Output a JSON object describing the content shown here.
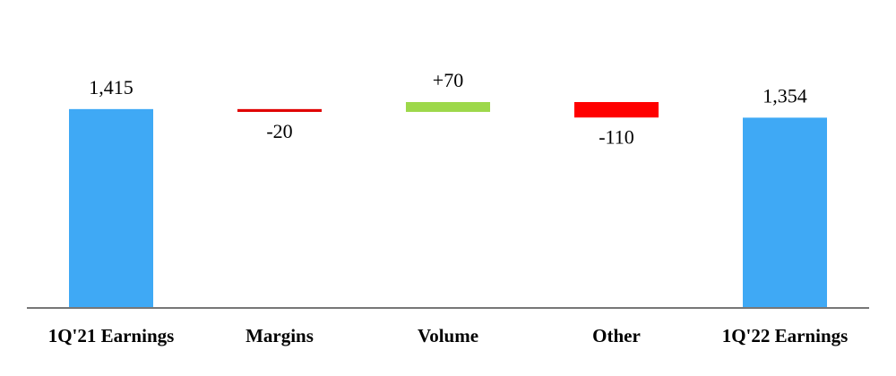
{
  "chart_data": {
    "type": "waterfall",
    "categories": [
      "1Q'21 Earnings",
      "Margins",
      "Volume",
      "Other",
      "1Q'22 Earnings"
    ],
    "measure": [
      "absolute",
      "relative",
      "relative",
      "relative",
      "absolute"
    ],
    "values": [
      1415,
      -20,
      70,
      -110,
      1354
    ],
    "value_labels": [
      "1,415",
      "-20",
      "+70",
      "-110",
      "1,354"
    ],
    "colors": [
      "#3fa9f5",
      "#e00000",
      "#9dd84a",
      "#ff0000",
      "#3fa9f5"
    ],
    "ylim": [
      0,
      2000
    ]
  }
}
